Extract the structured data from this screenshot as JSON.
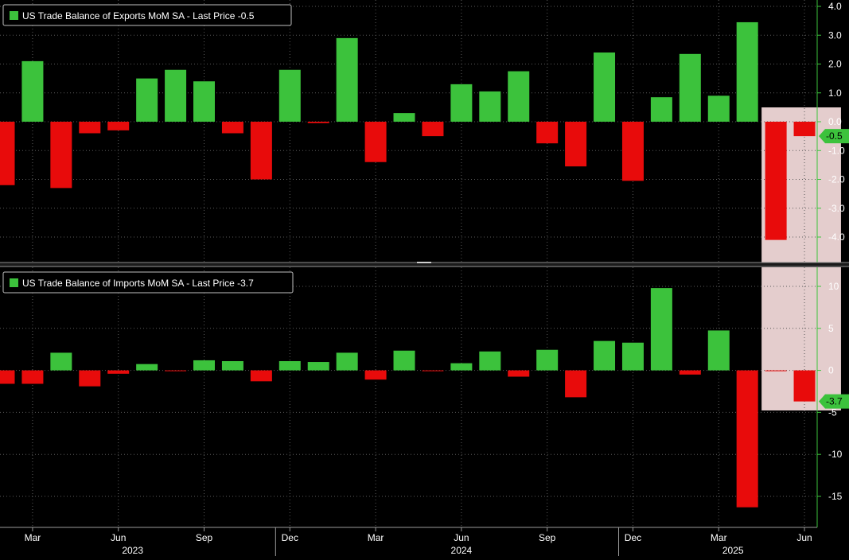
{
  "colors": {
    "background": "#000000",
    "positive": "#3cc23c",
    "negative": "#e80b0b",
    "grid": "#5a5a5a",
    "axis": "#3cc23c",
    "highlight": "#f7dede",
    "divider": "#8a8a8a",
    "text": "#ffffff"
  },
  "chart_data": [
    {
      "type": "bar",
      "legend_label": "US Trade Balance of Exports MoM SA - Last Price -0.5",
      "last_price_label": "-0.5",
      "x": [
        "2023-02",
        "2023-03",
        "2023-04",
        "2023-05",
        "2023-06",
        "2023-07",
        "2023-08",
        "2023-09",
        "2023-10",
        "2023-11",
        "2023-12",
        "2024-01",
        "2024-02",
        "2024-03",
        "2024-04",
        "2024-05",
        "2024-06",
        "2024-07",
        "2024-08",
        "2024-09",
        "2024-10",
        "2024-11",
        "2024-12",
        "2025-01",
        "2025-02",
        "2025-03",
        "2025-04",
        "2025-05",
        "2025-06"
      ],
      "values": [
        -2.2,
        2.1,
        -2.3,
        -0.4,
        -0.3,
        1.5,
        1.8,
        1.4,
        -0.4,
        -2.0,
        1.8,
        -0.05,
        2.9,
        -1.4,
        0.3,
        -0.5,
        1.3,
        1.05,
        1.75,
        -0.75,
        -1.55,
        2.4,
        -2.05,
        0.85,
        2.35,
        0.9,
        3.45,
        -4.1,
        -0.5
      ],
      "yticks": [
        "4.0",
        "3.0",
        "2.0",
        "1.0",
        "0.0",
        "-1.0",
        "-2.0",
        "-3.0",
        "-4.0"
      ],
      "ylim": [
        -4.8,
        4.2
      ]
    },
    {
      "type": "bar",
      "legend_label": "US Trade Balance of Imports MoM SA - Last Price -3.7",
      "last_price_label": "-3.7",
      "x": [
        "2023-02",
        "2023-03",
        "2023-04",
        "2023-05",
        "2023-06",
        "2023-07",
        "2023-08",
        "2023-09",
        "2023-10",
        "2023-11",
        "2023-12",
        "2024-01",
        "2024-02",
        "2024-03",
        "2024-04",
        "2024-05",
        "2024-06",
        "2024-07",
        "2024-08",
        "2024-09",
        "2024-10",
        "2024-11",
        "2024-12",
        "2025-01",
        "2025-02",
        "2025-03",
        "2025-04",
        "2025-05",
        "2025-06"
      ],
      "values": [
        -1.6,
        -1.6,
        2.1,
        -1.9,
        -0.4,
        0.75,
        -0.1,
        1.2,
        1.1,
        -1.3,
        1.1,
        1.0,
        2.1,
        -1.1,
        2.35,
        -0.1,
        0.85,
        2.25,
        -0.75,
        2.45,
        -3.2,
        3.5,
        3.3,
        9.8,
        -0.5,
        4.75,
        -16.3,
        -0.1,
        -3.7
      ],
      "yticks": [
        "10",
        "5",
        "0",
        "-5",
        "-10",
        "-15"
      ],
      "ylim": [
        -18.5,
        11.5
      ]
    }
  ],
  "x_axis": {
    "month_labels": [
      {
        "label": "Mar",
        "index": 1
      },
      {
        "label": "Jun",
        "index": 4
      },
      {
        "label": "Sep",
        "index": 7
      },
      {
        "label": "Dec",
        "index": 10
      },
      {
        "label": "Mar",
        "index": 13
      },
      {
        "label": "Jun",
        "index": 16
      },
      {
        "label": "Sep",
        "index": 19
      },
      {
        "label": "Dec",
        "index": 22
      },
      {
        "label": "Mar",
        "index": 25
      },
      {
        "label": "Jun",
        "index": 28
      }
    ],
    "year_labels": [
      {
        "label": "2023",
        "index": 4.5
      },
      {
        "label": "2024",
        "index": 16
      },
      {
        "label": "2025",
        "index": 25.5
      }
    ],
    "year_separators": [
      9.5,
      21.5
    ]
  },
  "highlight": {
    "from_index": 26.5,
    "to_index": 29.5
  }
}
